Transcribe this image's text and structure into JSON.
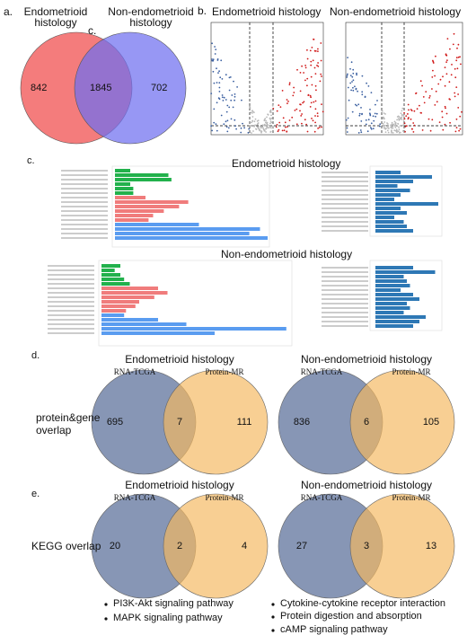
{
  "panel_a": {
    "label": "a.",
    "stray_label": "c.",
    "sets": [
      "Endometrioid histology",
      "Non-endometrioid histology"
    ],
    "counts": [
      842,
      1845,
      702
    ]
  },
  "panel_b": {
    "label": "b.",
    "titles": [
      "Endometrioid histology",
      "Non-endometrioid histology"
    ]
  },
  "panel_c": {
    "label": "c.",
    "titles": [
      "Endometrioid histology",
      "Non-endometrioid histology"
    ]
  },
  "panel_d": {
    "label": "d.",
    "row_label": "protein&gene overlap",
    "venns": [
      {
        "title": "Endometrioid histology",
        "sets": [
          "RNA-TCGA",
          "Protein-MR"
        ],
        "counts": [
          695,
          7,
          111
        ]
      },
      {
        "title": "Non-endometrioid histology",
        "sets": [
          "RNA-TCGA",
          "Protein-MR"
        ],
        "counts": [
          836,
          6,
          105
        ]
      }
    ]
  },
  "panel_e": {
    "label": "e.",
    "row_label": "KEGG overlap",
    "venns": [
      {
        "title": "Endometrioid histology",
        "sets": [
          "RNA-TCGA",
          "Protein-MR"
        ],
        "counts": [
          20,
          2,
          4
        ]
      },
      {
        "title": "Non-endometrioid histology",
        "sets": [
          "RNA-TCGA",
          "Protein-MR"
        ],
        "counts": [
          27,
          3,
          13
        ]
      }
    ],
    "pathways": [
      [
        "PI3K-Akt signaling pathway",
        "MAPK signaling pathway"
      ],
      [
        "Cytokine-cytokine receptor interaction",
        "Protein digestion and absorption",
        "cAMP signaling pathway"
      ]
    ]
  }
}
